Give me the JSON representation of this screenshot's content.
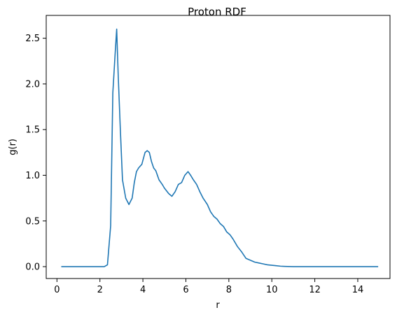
{
  "chart_data": {
    "type": "line",
    "title": "Proton RDF",
    "xlabel": "r",
    "ylabel": "g(r)",
    "xlim": [
      -0.5,
      15.5
    ],
    "ylim": [
      -0.13,
      2.75
    ],
    "xticks": [
      0,
      2,
      4,
      6,
      8,
      10,
      12,
      14
    ],
    "xtick_labels": [
      "0",
      "2",
      "4",
      "6",
      "8",
      "10",
      "12",
      "14"
    ],
    "yticks": [
      0.0,
      0.5,
      1.0,
      1.5,
      2.0,
      2.5
    ],
    "ytick_labels": [
      "0.0",
      "0.5",
      "1.0",
      "1.5",
      "2.0",
      "2.5"
    ],
    "grid": false,
    "line_color": "#1f77b4",
    "series": [
      {
        "x": [
          0.2,
          0.5,
          1.0,
          1.5,
          2.0,
          2.2,
          2.35,
          2.5,
          2.6,
          2.7,
          2.78,
          2.85,
          2.95,
          3.05,
          3.2,
          3.35,
          3.5,
          3.6,
          3.7,
          3.8,
          3.95,
          4.1,
          4.2,
          4.3,
          4.4,
          4.5,
          4.6,
          4.75,
          4.9,
          5.0,
          5.2,
          5.35,
          5.5,
          5.65,
          5.8,
          5.95,
          6.1,
          6.22,
          6.35,
          6.5,
          6.65,
          6.8,
          7.0,
          7.15,
          7.3,
          7.45,
          7.6,
          7.75,
          7.9,
          8.05,
          8.2,
          8.4,
          8.6,
          8.8,
          9.0,
          9.2,
          9.4,
          9.6,
          9.8,
          10.0,
          10.2,
          10.4,
          10.6,
          11.0,
          12.0,
          13.0,
          14.0,
          14.95
        ],
        "y": [
          0.0,
          0.0,
          0.0,
          0.0,
          0.0,
          0.0,
          0.02,
          0.45,
          1.9,
          2.3,
          2.6,
          2.1,
          1.5,
          0.95,
          0.75,
          0.68,
          0.75,
          0.92,
          1.04,
          1.08,
          1.12,
          1.25,
          1.27,
          1.25,
          1.15,
          1.08,
          1.05,
          0.95,
          0.9,
          0.86,
          0.8,
          0.77,
          0.82,
          0.9,
          0.92,
          1.0,
          1.04,
          1.0,
          0.95,
          0.9,
          0.82,
          0.75,
          0.68,
          0.6,
          0.55,
          0.52,
          0.47,
          0.44,
          0.38,
          0.35,
          0.3,
          0.22,
          0.16,
          0.09,
          0.07,
          0.05,
          0.04,
          0.03,
          0.02,
          0.015,
          0.01,
          0.005,
          0.003,
          0.0,
          0.0,
          0.0,
          0.0,
          0.0
        ]
      }
    ]
  }
}
